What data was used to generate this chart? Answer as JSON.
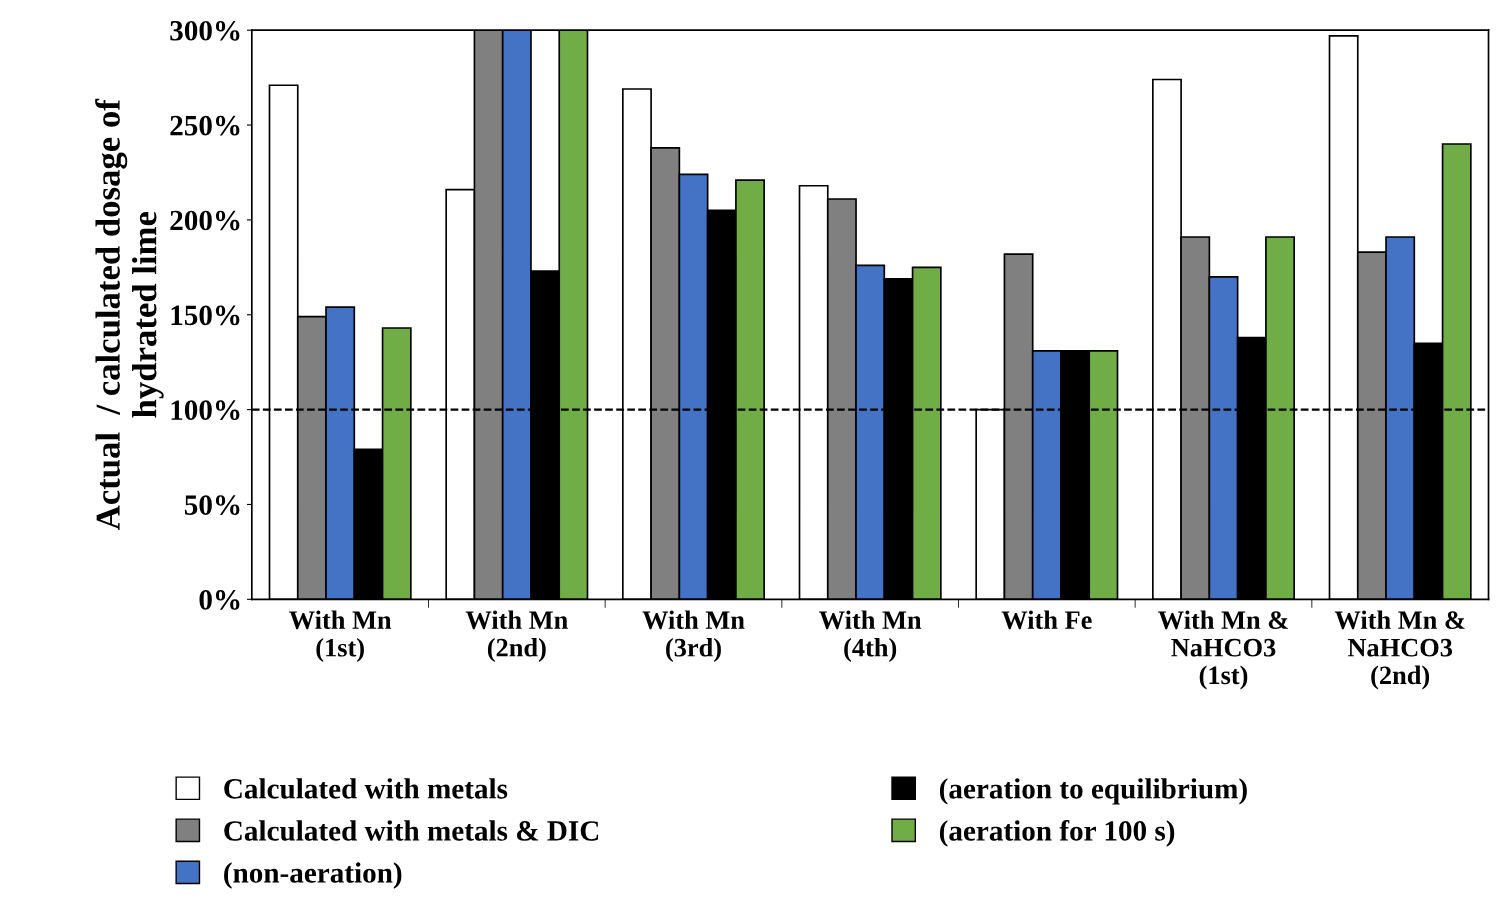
{
  "chart_data": {
    "type": "bar",
    "ylabel": "Actual  / calculated dosage of\nhydrated lime",
    "categories": [
      "With Mn\n(1st)",
      "With Mn\n(2nd)",
      "With Mn\n(3rd)",
      "With Mn\n(4th)",
      "With Fe",
      "With Mn &\nNaHCO3\n(1st)",
      "With Mn &\nNaHCO3\n(2nd)"
    ],
    "series": [
      {
        "name": "Calculated with metals",
        "color": "#ffffff",
        "values": [
          271,
          216,
          269,
          218,
          100,
          274,
          297
        ]
      },
      {
        "name": "Calculated with metals & DIC",
        "color": "#808080",
        "values": [
          149,
          300,
          238,
          211,
          182,
          191,
          183
        ]
      },
      {
        "name": "(non-aeration)",
        "color": "#4472c4",
        "values": [
          154,
          300,
          224,
          176,
          131,
          170,
          191
        ]
      },
      {
        "name": "(aeration to equilibrium)",
        "color": "#000000",
        "values": [
          79,
          173,
          205,
          169,
          131,
          138,
          135
        ]
      },
      {
        "name": "(aeration for 100 s)",
        "color": "#70ad47",
        "values": [
          143,
          300,
          221,
          175,
          131,
          191,
          240
        ]
      }
    ],
    "ylim": [
      0,
      300
    ],
    "yticks": [
      {
        "value": 0,
        "label": "0%"
      },
      {
        "value": 50,
        "label": "50%"
      },
      {
        "value": 100,
        "label": "100%"
      },
      {
        "value": 150,
        "label": "150%"
      },
      {
        "value": 200,
        "label": "200%"
      },
      {
        "value": 250,
        "label": "250%"
      },
      {
        "value": 300,
        "label": "300%"
      }
    ],
    "ref_lines": [
      {
        "axis": "y",
        "value": 100,
        "color": "#000000",
        "line_style": "dashed"
      }
    ],
    "grid": false,
    "legend": "bottom"
  }
}
